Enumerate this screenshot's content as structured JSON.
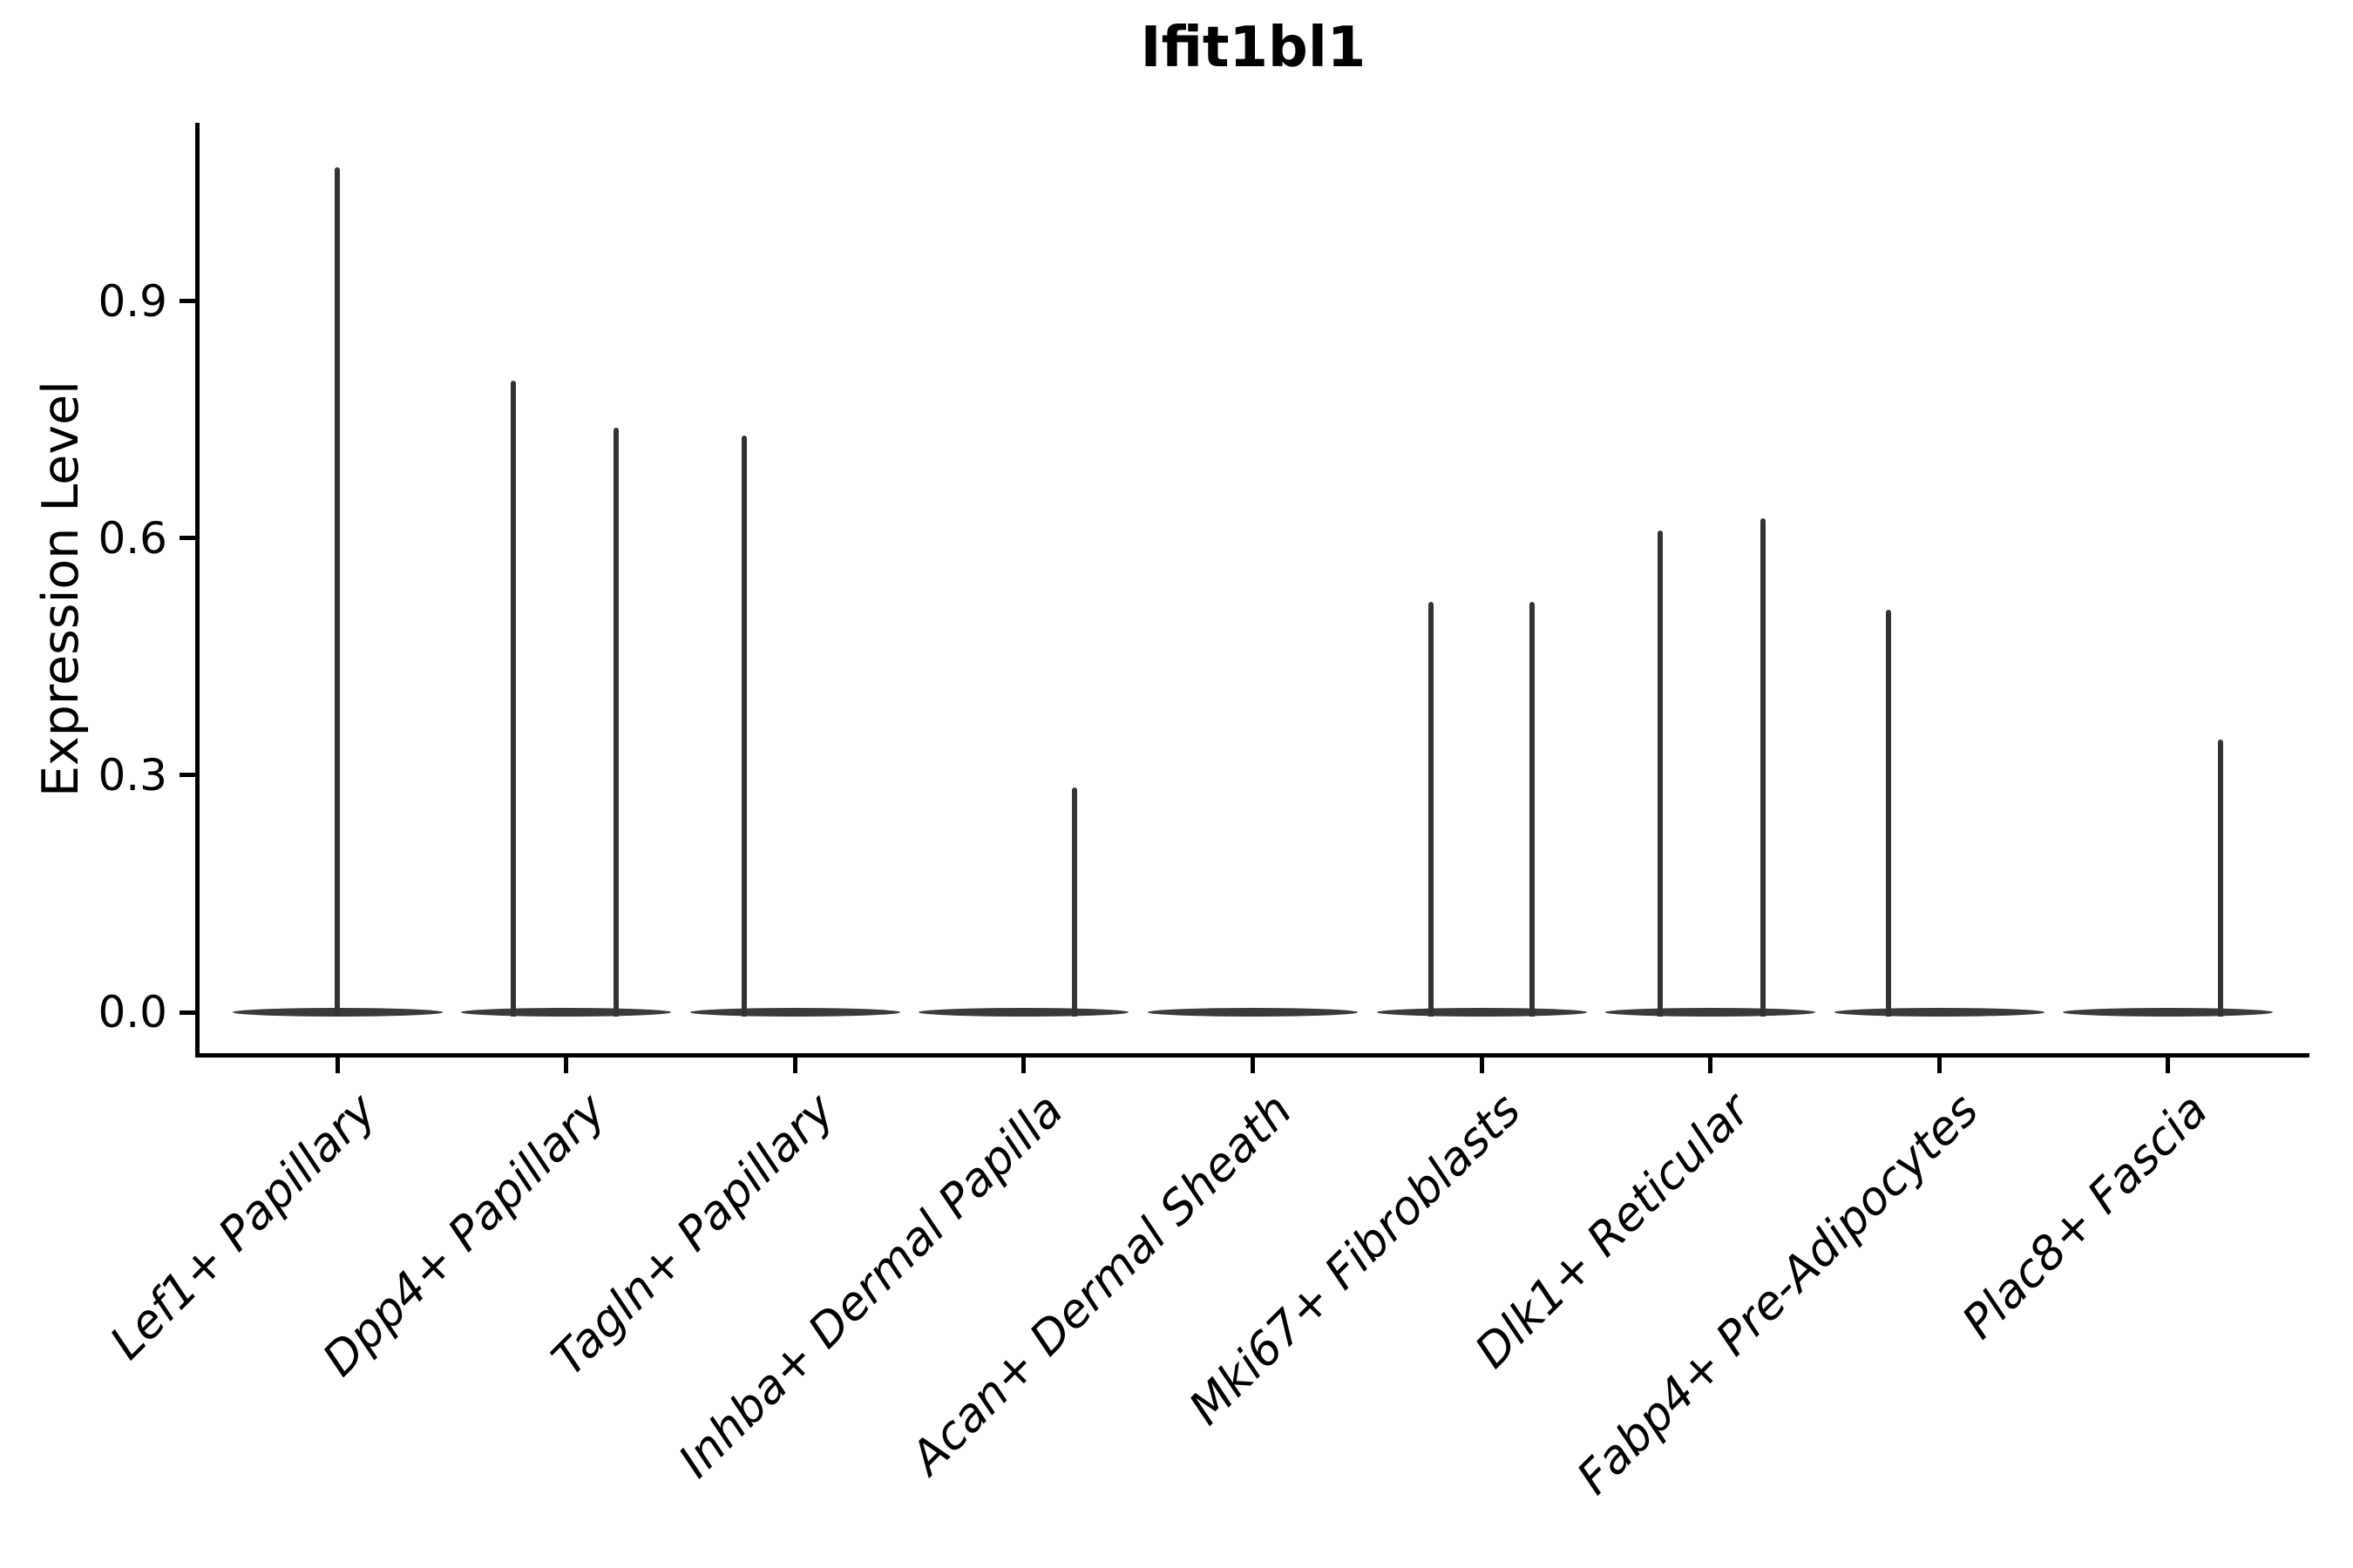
{
  "title": "Ifit1bl1",
  "ylabel": "Expression Level",
  "colors": {
    "background": "#ffffff",
    "axis": "#000000",
    "violin_fill": "#3a3a3a",
    "spike": "#333333",
    "text": "#000000"
  },
  "chart_data": {
    "type": "violin",
    "title": "Ifit1bl1",
    "xlabel": "",
    "ylabel": "Expression Level",
    "ylim": [
      -0.05,
      1.13
    ],
    "grid": false,
    "legend": false,
    "yticks": [
      {
        "value": 0.0,
        "label": "0.0"
      },
      {
        "value": 0.3,
        "label": "0.3"
      },
      {
        "value": 0.6,
        "label": "0.6"
      },
      {
        "value": 0.9,
        "label": "0.9"
      }
    ],
    "categories": [
      "Lef1+ Papillary",
      "Dpp4+ Papillary",
      "Tagln+ Papillary",
      "Inhba+ Dermal Papilla",
      "Acan+ Dermal Sheath",
      "Mki67+ Fibroblasts",
      "Dlk1+ Reticular",
      "Fabp4+ Pre-Adipocytes",
      "Plac8+ Fascia"
    ],
    "series": [
      {
        "name": "Lef1+ Papillary",
        "base_at_zero": true,
        "spikes": [
          {
            "pos": 0.0,
            "max": 1.07
          }
        ]
      },
      {
        "name": "Dpp4+ Papillary",
        "base_at_zero": true,
        "spikes": [
          {
            "pos": -0.23,
            "max": 0.8
          },
          {
            "pos": 0.22,
            "max": 0.74
          }
        ]
      },
      {
        "name": "Tagln+ Papillary",
        "base_at_zero": true,
        "spikes": [
          {
            "pos": -0.22,
            "max": 0.73
          }
        ]
      },
      {
        "name": "Inhba+ Dermal Papilla",
        "base_at_zero": true,
        "spikes": [
          {
            "pos": 0.22,
            "max": 0.285
          }
        ]
      },
      {
        "name": "Acan+ Dermal Sheath",
        "base_at_zero": true,
        "spikes": []
      },
      {
        "name": "Mki67+ Fibroblasts",
        "base_at_zero": true,
        "spikes": [
          {
            "pos": -0.22,
            "max": 0.52
          },
          {
            "pos": 0.22,
            "max": 0.52
          }
        ]
      },
      {
        "name": "Dlk1+ Reticular",
        "base_at_zero": true,
        "spikes": [
          {
            "pos": -0.22,
            "max": 0.61
          },
          {
            "pos": 0.23,
            "max": 0.625
          }
        ]
      },
      {
        "name": "Fabp4+ Pre-Adipocytes",
        "base_at_zero": true,
        "spikes": [
          {
            "pos": -0.22,
            "max": 0.51
          }
        ]
      },
      {
        "name": "Plac8+ Fascia",
        "base_at_zero": true,
        "spikes": [
          {
            "pos": 0.23,
            "max": 0.345
          }
        ]
      }
    ]
  }
}
